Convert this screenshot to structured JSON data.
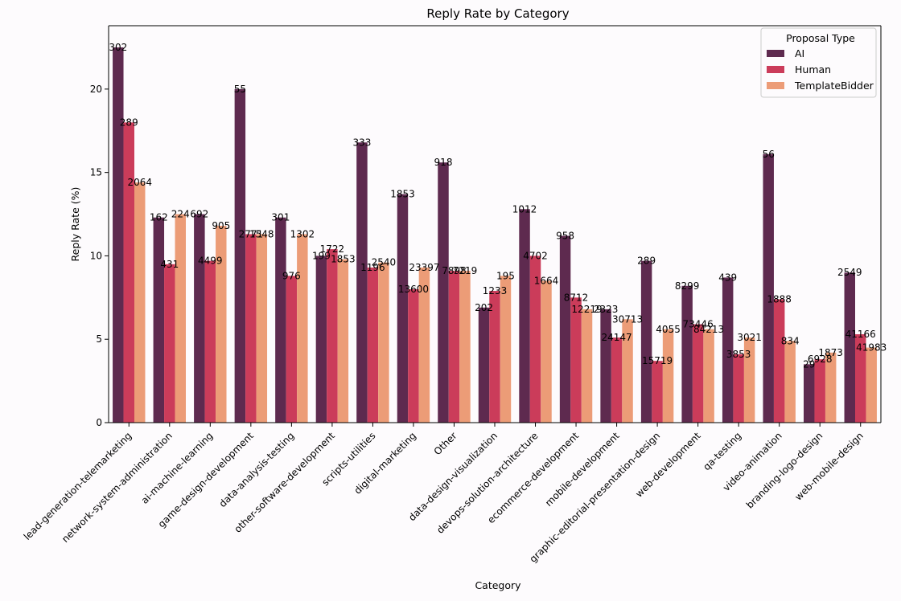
{
  "chart_data": {
    "type": "bar",
    "title": "Reply Rate by Category",
    "xlabel": "Category",
    "ylabel": "Reply Rate (%)",
    "ylim": [
      0,
      23.8
    ],
    "yticks": [
      0,
      5,
      10,
      15,
      20
    ],
    "legend": {
      "title": "Proposal Type",
      "placement": "top-right"
    },
    "categories": [
      "lead-generation-telemarketing",
      "network-system-administration",
      "ai-machine-learning",
      "game-design-development",
      "data-analysis-testing",
      "other-software-development",
      "scripts-utilities",
      "digital-marketing",
      "Other",
      "data-design-visualization",
      "devops-solution-architecture",
      "ecommerce-development",
      "mobile-development",
      "graphic-editorial-presentation-design",
      "web-development",
      "qa-testing",
      "video-animation",
      "branding-logo-design",
      "web-mobile-design"
    ],
    "series": [
      {
        "name": "AI",
        "color": "#5e2a4f",
        "values": [
          22.5,
          12.3,
          12.5,
          20.0,
          12.3,
          10.0,
          16.8,
          13.7,
          15.6,
          6.9,
          12.8,
          11.2,
          6.8,
          9.7,
          8.2,
          8.7,
          16.1,
          3.5,
          9.0
        ],
        "labels": [
          "302",
          "162",
          "692",
          "55",
          "301",
          "199",
          "333",
          "1853",
          "918",
          "202",
          "1012",
          "958",
          "2323",
          "289",
          "8299",
          "439",
          "56",
          "29",
          "2549"
        ]
      },
      {
        "name": "Human",
        "color": "#cb3c5a",
        "values": [
          18.0,
          9.5,
          9.7,
          11.3,
          8.8,
          10.4,
          9.3,
          8.0,
          9.1,
          7.9,
          10.0,
          7.5,
          5.1,
          3.7,
          5.9,
          4.1,
          7.4,
          3.8,
          5.3
        ],
        "labels": [
          "289",
          "431",
          "4499",
          "2771",
          "976",
          "1722",
          "1196",
          "13600",
          "7898",
          "1233",
          "4702",
          "8712",
          "24147",
          "15719",
          "73446",
          "3853",
          "1888",
          "6928",
          "41166"
        ]
      },
      {
        "name": "TemplateBidder",
        "color": "#ec9c77",
        "values": [
          14.4,
          12.5,
          11.8,
          11.3,
          11.3,
          9.8,
          9.6,
          9.3,
          9.1,
          8.8,
          8.5,
          6.8,
          6.2,
          5.6,
          5.6,
          5.1,
          4.9,
          4.2,
          4.5
        ],
        "labels": [
          "2064",
          "224",
          "905",
          "1548",
          "1302",
          "1853",
          "2540",
          "23397",
          "7219",
          "195",
          "1664",
          "12219",
          "30713",
          "4055",
          "84213",
          "3021",
          "834",
          "1873",
          "41983"
        ]
      }
    ]
  }
}
